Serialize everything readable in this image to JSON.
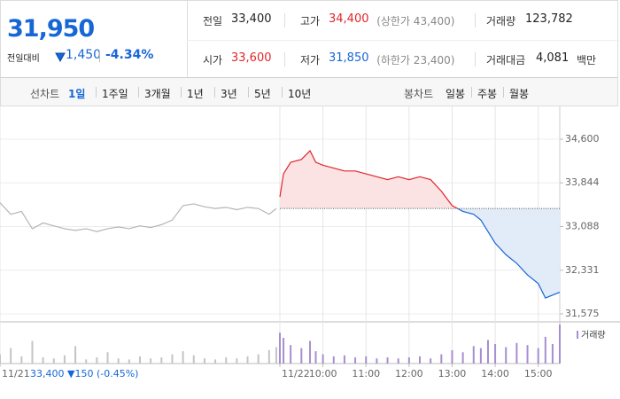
{
  "quote": {
    "price": "31,950",
    "change_label": "전일대비",
    "change": "1,450",
    "change_rate": "-4.34%",
    "color": "#1766d6"
  },
  "info": [
    [
      {
        "label": "전일",
        "value": "33,400",
        "color": "#222222"
      },
      {
        "label": "고가",
        "value": "34,400",
        "note": "(상한가 43,400)",
        "color": "#e0262c"
      },
      {
        "label": "거래량",
        "value": "123,782",
        "color": "#222222"
      }
    ],
    [
      {
        "label": "시가",
        "value": "33,600",
        "color": "#e0262c"
      },
      {
        "label": "저가",
        "value": "31,850",
        "note": "(하한가 23,400)",
        "color": "#1766d6"
      },
      {
        "label": "거래대금",
        "value": "4,081",
        "unit": "백만",
        "color": "#222222"
      }
    ]
  ],
  "tabs": {
    "line_label": "선차트",
    "periods": [
      "1일",
      "1주일",
      "3개월",
      "1년",
      "3년",
      "5년",
      "10년"
    ],
    "selected": 0,
    "candle_label": "봉차트",
    "candles": [
      "일봉",
      "주봉",
      "월봉"
    ]
  },
  "chart_data": {
    "type": "line",
    "xlim": [
      -390,
      390
    ],
    "xticks": [
      {
        "value": -390,
        "label": "11/21"
      },
      {
        "value": 0,
        "label": "11/22"
      },
      {
        "value": 60,
        "label": "10:00"
      },
      {
        "value": 120,
        "label": "11:00"
      },
      {
        "value": 180,
        "label": "12:00"
      },
      {
        "value": 240,
        "label": "13:00"
      },
      {
        "value": 300,
        "label": "14:00"
      },
      {
        "value": 360,
        "label": "15:00"
      }
    ],
    "ylim": [
      31575,
      34600
    ],
    "yticks": [
      {
        "value": 34600,
        "label": "34,600"
      },
      {
        "value": 33844,
        "label": "33,844"
      },
      {
        "value": 33088,
        "label": "33,088"
      },
      {
        "value": 32331,
        "label": "32,331"
      },
      {
        "value": 31575,
        "label": "31,575"
      }
    ],
    "baseline": 33400,
    "prev_summary": "33,400 ▼150 (-0.45%)",
    "volume_label": "거래량",
    "volume_color": "#a78ed0",
    "series": [
      {
        "color": "#b5b5b5",
        "volume_color": "#c4c4c4",
        "x": [
          -390,
          -375,
          -360,
          -345,
          -330,
          -315,
          -300,
          -285,
          -270,
          -255,
          -240,
          -225,
          -210,
          -195,
          -180,
          -165,
          -150,
          -135,
          -120,
          -105,
          -90,
          -75,
          -60,
          -45,
          -30,
          -15,
          -5
        ],
        "values": [
          33500,
          33300,
          33350,
          33050,
          33150,
          33100,
          33050,
          33020,
          33050,
          33000,
          33050,
          33080,
          33050,
          33100,
          33070,
          33120,
          33200,
          33450,
          33480,
          33430,
          33400,
          33420,
          33380,
          33420,
          33400,
          33300,
          33400
        ],
        "volume": [
          900,
          1500,
          700,
          2200,
          600,
          500,
          800,
          1700,
          400,
          600,
          1100,
          500,
          400,
          700,
          500,
          600,
          900,
          1200,
          800,
          500,
          400,
          600,
          500,
          700,
          900,
          1300,
          1600
        ]
      },
      {
        "up_color": "#e0262c",
        "down_color": "#1766d6",
        "up_fill": "#fbe3e4",
        "down_fill": "#e2ebf8",
        "volume_color": "#a78ed0",
        "x": [
          0,
          5,
          15,
          30,
          42,
          50,
          60,
          75,
          90,
          105,
          120,
          135,
          150,
          165,
          180,
          195,
          210,
          225,
          240,
          255,
          270,
          280,
          290,
          300,
          315,
          330,
          345,
          360,
          370,
          380,
          390
        ],
        "values": [
          33600,
          34000,
          34200,
          34250,
          34400,
          34200,
          34150,
          34100,
          34050,
          34050,
          34000,
          33950,
          33900,
          33950,
          33900,
          33950,
          33900,
          33700,
          33450,
          33350,
          33300,
          33200,
          33000,
          32800,
          32600,
          32450,
          32250,
          32100,
          31850,
          31900,
          31950
        ],
        "volume": [
          3000,
          2500,
          1800,
          1500,
          2200,
          1200,
          900,
          700,
          800,
          600,
          700,
          500,
          600,
          500,
          600,
          700,
          500,
          900,
          1300,
          1100,
          1700,
          1500,
          2300,
          1900,
          1600,
          2000,
          1800,
          1500,
          2600,
          1900,
          3800
        ]
      }
    ]
  }
}
